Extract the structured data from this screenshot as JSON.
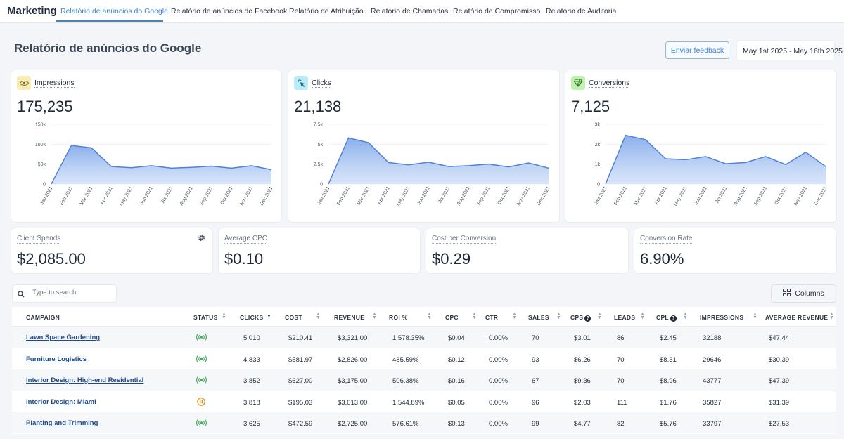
{
  "app": {
    "brand": "Marketing"
  },
  "tabs": [
    {
      "label": "Relatório de anúncios do Google"
    },
    {
      "label": "Relatório de anúncios do Facebook"
    },
    {
      "label": "Relatório de Atribuição"
    },
    {
      "label": "Relatório de Chamadas"
    },
    {
      "label": "Relatório de Compromisso"
    },
    {
      "label": "Relatório de Auditoria"
    }
  ],
  "header": {
    "title": "Relatório de anúncios do Google",
    "feedback_label": "Enviar feedback",
    "date_range": "May 1st 2025 - May 16th 2025"
  },
  "metrics": [
    {
      "label": "Impressions",
      "value": "175,235",
      "icon": "eye-icon",
      "icon_bg": "#f7ecb5",
      "icon_color": "#7a6a1a"
    },
    {
      "label": "Clicks",
      "value": "21,138",
      "icon": "cursor-click-icon",
      "icon_bg": "#b9ecf6",
      "icon_color": "#1b6f86"
    },
    {
      "label": "Conversions",
      "value": "7,125",
      "icon": "diamond-icon",
      "icon_bg": "#bff0b0",
      "icon_color": "#2f7a1f"
    }
  ],
  "chart_data": [
    {
      "type": "area",
      "x": [
        "Jan 2021",
        "Feb 2021",
        "Mar 2021",
        "Apr 2021",
        "May 2021",
        "Jun 2021",
        "Jul 2021",
        "Aug 2021",
        "Sep 2021",
        "Oct 2021",
        "Nov 2021",
        "Dec 2021"
      ],
      "values": [
        0,
        97000,
        91000,
        44000,
        41000,
        46000,
        40000,
        42000,
        45000,
        40000,
        46000,
        36000
      ],
      "ylim": [
        0,
        150000
      ],
      "y_ticks": [
        0,
        50000,
        100000,
        150000
      ],
      "y_tick_labels": [
        "0",
        "50k",
        "100k",
        "150k"
      ],
      "color": "#4f82d6"
    },
    {
      "type": "area",
      "x": [
        "Jan 2021",
        "Feb 2021",
        "Mar 2021",
        "Apr 2021",
        "May 2021",
        "Jun 2021",
        "Jul 2021",
        "Aug 2021",
        "Sep 2021",
        "Oct 2021",
        "Nov 2021",
        "Dec 2021"
      ],
      "values": [
        0,
        5800,
        5200,
        2700,
        2400,
        2750,
        2200,
        2300,
        2500,
        2150,
        2650,
        2000
      ],
      "ylim": [
        0,
        7500
      ],
      "y_ticks": [
        0,
        2500,
        5000,
        7500
      ],
      "y_tick_labels": [
        "0",
        "2.5k",
        "5k",
        "7.5k"
      ],
      "color": "#4f82d6"
    },
    {
      "type": "area",
      "x": [
        "Jan 2021",
        "Feb 2021",
        "Mar 2021",
        "Apr 2021",
        "May 2021",
        "Jun 2021",
        "Jul 2021",
        "Aug 2021",
        "Sep 2021",
        "Oct 2021",
        "Nov 2021",
        "Dec 2021"
      ],
      "values": [
        0,
        2450,
        2230,
        1270,
        1220,
        1380,
        1020,
        1080,
        1380,
        980,
        1600,
        880
      ],
      "ylim": [
        0,
        3000
      ],
      "y_ticks": [
        0,
        1000,
        2000,
        3000
      ],
      "y_tick_labels": [
        "0",
        "1k",
        "2k",
        "3k"
      ],
      "color": "#4f82d6"
    }
  ],
  "stats": [
    {
      "label": "Client Spends",
      "value": "$2,085.00"
    },
    {
      "label": "Average CPC",
      "value": "$0.10"
    },
    {
      "label": "Cost per Conversion",
      "value": "$0.29"
    },
    {
      "label": "Conversion Rate",
      "value": "6.90%"
    }
  ],
  "search": {
    "placeholder": "Type to search"
  },
  "columns_label": "Columns",
  "table": {
    "headers": [
      "CAMPAIGN",
      "STATUS",
      "CLICKS",
      "COST",
      "REVENUE",
      "ROI %",
      "CPC",
      "CTR",
      "SALES",
      "CPS",
      "LEADS",
      "CPL",
      "IMPRESSIONS",
      "AVERAGE REVENUE"
    ],
    "rows": [
      {
        "campaign": "Lawn Space Gardening",
        "status": "active",
        "clicks": "5,010",
        "cost": "$210.41",
        "revenue": "$3,321.00",
        "roi": "1,578.35%",
        "cpc": "$0.04",
        "ctr": "0.00%",
        "sales": "70",
        "cps": "$3.01",
        "leads": "86",
        "cpl": "$2.45",
        "impressions": "32188",
        "avg_revenue": "$47.44"
      },
      {
        "campaign": "Furniture Logistics",
        "status": "active",
        "clicks": "4,833",
        "cost": "$581.97",
        "revenue": "$2,826.00",
        "roi": "485.59%",
        "cpc": "$0.12",
        "ctr": "0.00%",
        "sales": "93",
        "cps": "$6.26",
        "leads": "70",
        "cpl": "$8.31",
        "impressions": "29646",
        "avg_revenue": "$30.39"
      },
      {
        "campaign": "Interior Design: High-end Residential",
        "status": "active",
        "clicks": "3,852",
        "cost": "$627.00",
        "revenue": "$3,175.00",
        "roi": "506.38%",
        "cpc": "$0.16",
        "ctr": "0.00%",
        "sales": "67",
        "cps": "$9.36",
        "leads": "70",
        "cpl": "$8.96",
        "impressions": "43777",
        "avg_revenue": "$47.39"
      },
      {
        "campaign": "Interior Design: Miami",
        "status": "paused",
        "clicks": "3,818",
        "cost": "$195.03",
        "revenue": "$3,013.00",
        "roi": "1,544.89%",
        "cpc": "$0.05",
        "ctr": "0.00%",
        "sales": "96",
        "cps": "$2.03",
        "leads": "111",
        "cpl": "$1.76",
        "impressions": "35827",
        "avg_revenue": "$31.39"
      },
      {
        "campaign": "Planting and Trimming",
        "status": "active",
        "clicks": "3,625",
        "cost": "$472.59",
        "revenue": "$2,725.00",
        "roi": "576.61%",
        "cpc": "$0.13",
        "ctr": "0.00%",
        "sales": "99",
        "cps": "$4.77",
        "leads": "82",
        "cpl": "$5.76",
        "impressions": "33797",
        "avg_revenue": "$27.53"
      }
    ]
  },
  "colors": {
    "accent": "#3b86d1",
    "active_status": "#3fb45a",
    "paused_status": "#e08a1e",
    "link": "#1f4a8a"
  }
}
